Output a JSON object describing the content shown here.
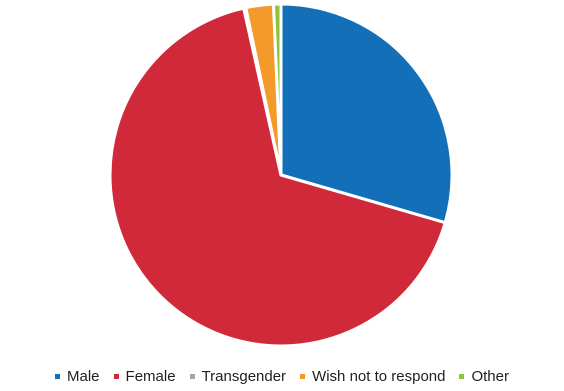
{
  "chart_data": {
    "type": "pie",
    "title": "",
    "categories": [
      "Male",
      "Female",
      "Transgender",
      "Wish not to respond",
      "Other"
    ],
    "values": [
      29.5,
      67.0,
      0.2,
      2.6,
      0.7
    ],
    "unit": "%",
    "colors": [
      "#1370b8",
      "#d0293a",
      "#a5a5a5",
      "#f39a2a",
      "#8cc43c"
    ],
    "legend_position": "bottom",
    "start_angle_deg": 0,
    "direction": "clockwise"
  }
}
